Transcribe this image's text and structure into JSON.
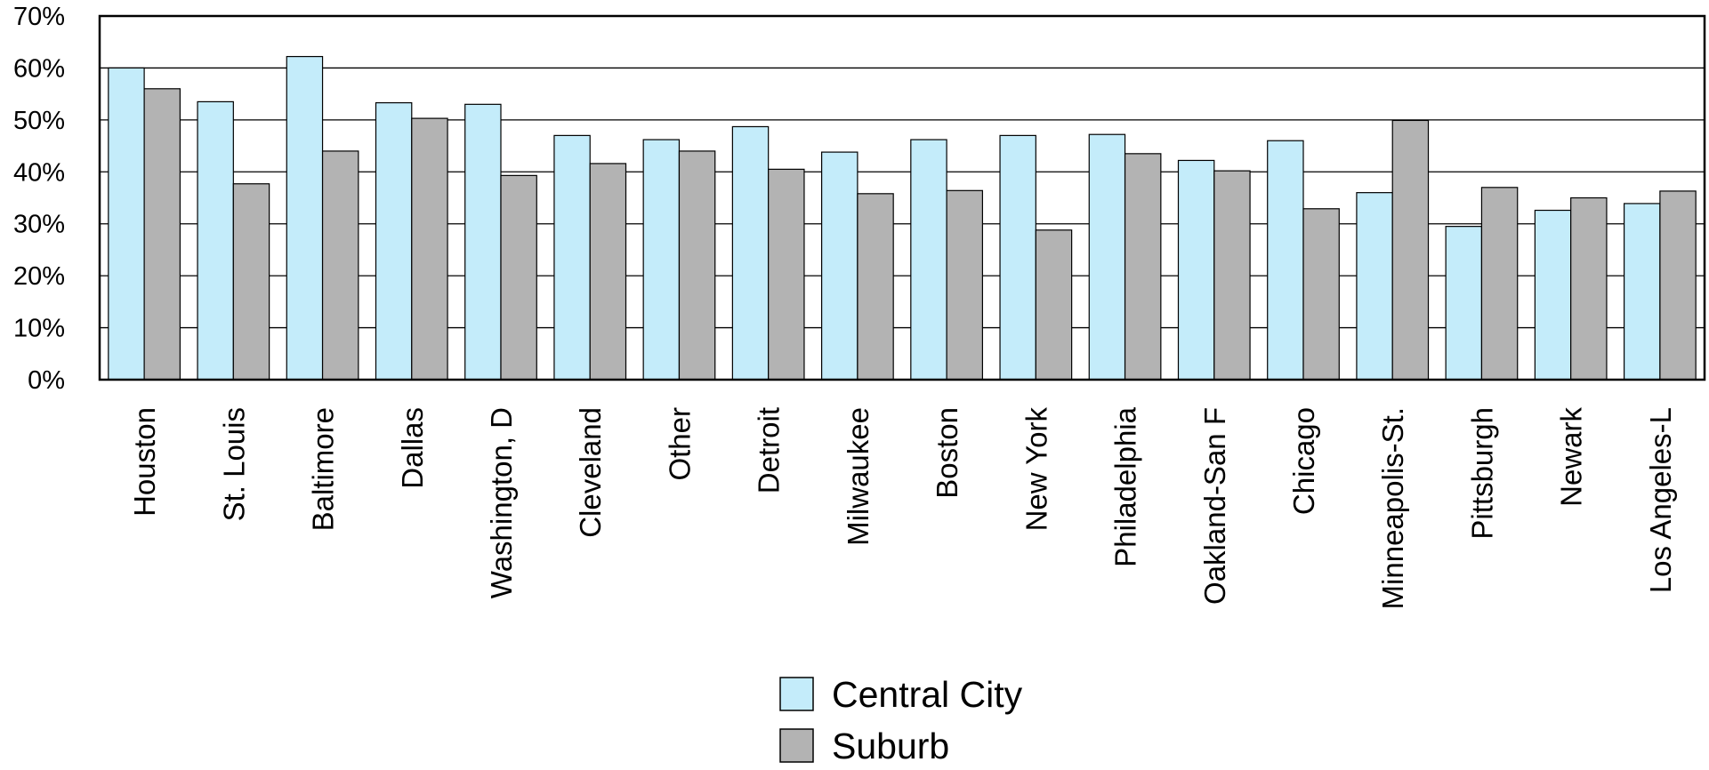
{
  "chart_data": {
    "type": "bar",
    "title": "",
    "xlabel": "",
    "ylabel": "",
    "ylim": [
      0,
      70
    ],
    "yticks": [
      "0%",
      "10%",
      "20%",
      "30%",
      "40%",
      "50%",
      "60%",
      "70%"
    ],
    "grid": "horizontal",
    "legend_position": "bottom-center",
    "categories": [
      "Houston",
      "St. Louis",
      "Baltimore",
      "Dallas",
      "Washington, D",
      "Cleveland",
      "Other",
      "Detroit",
      "Milwaukee",
      "Boston",
      "New York",
      "Philadelphia",
      "Oakland-San F",
      "Chicago",
      "Minneapolis-St.",
      "Pittsburgh",
      "Newark",
      "Los Angeles-L"
    ],
    "series": [
      {
        "name": "Central City",
        "color": "#c4ecfa",
        "values": [
          60,
          53.5,
          62.2,
          53.3,
          53,
          47,
          46.2,
          48.7,
          43.8,
          46.2,
          47,
          47.2,
          42.2,
          46,
          36,
          29.5,
          32.6,
          33.9
        ]
      },
      {
        "name": "Suburb",
        "color": "#b3b3b3",
        "values": [
          56,
          37.7,
          44,
          50.3,
          39.3,
          41.6,
          44,
          40.5,
          35.8,
          36.4,
          28.8,
          43.5,
          40.2,
          32.9,
          49.9,
          37,
          35,
          36.3
        ]
      }
    ]
  }
}
